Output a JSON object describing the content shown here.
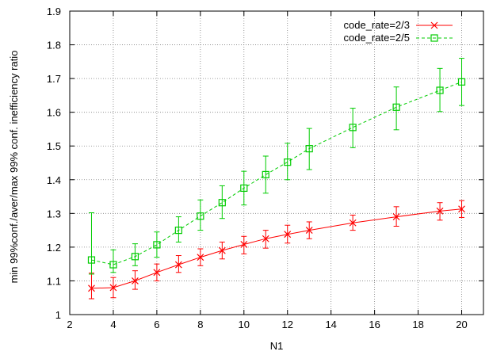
{
  "chart_data": {
    "type": "line",
    "xlabel": "N1",
    "ylabel": "min 99%conf./aver/max 99% conf. inefficiency ratio",
    "xlim": [
      2,
      21
    ],
    "ylim": [
      1,
      1.9
    ],
    "xticks": [
      2,
      4,
      6,
      8,
      10,
      12,
      14,
      16,
      18,
      20
    ],
    "yticks": [
      1,
      1.1,
      1.2,
      1.3,
      1.4,
      1.5,
      1.6,
      1.7,
      1.8,
      1.9
    ],
    "grid": true,
    "legend": "top-right",
    "series": [
      {
        "name": "code_rate=2/3",
        "color": "#ff0000",
        "marker": "x-icon",
        "line": "solid",
        "x": [
          3,
          4,
          5,
          6,
          7,
          8,
          9,
          10,
          11,
          12,
          13,
          15,
          17,
          19,
          20
        ],
        "y": [
          1.078,
          1.08,
          1.1,
          1.125,
          1.148,
          1.17,
          1.19,
          1.208,
          1.225,
          1.238,
          1.25,
          1.272,
          1.29,
          1.307,
          1.313
        ],
        "ymin": [
          1.047,
          1.05,
          1.075,
          1.1,
          1.125,
          1.145,
          1.165,
          1.18,
          1.197,
          1.212,
          1.225,
          1.25,
          1.262,
          1.28,
          1.288
        ],
        "ymax": [
          1.123,
          1.11,
          1.13,
          1.15,
          1.175,
          1.195,
          1.215,
          1.232,
          1.25,
          1.265,
          1.275,
          1.295,
          1.32,
          1.332,
          1.338
        ]
      },
      {
        "name": "code_rate=2/5",
        "color": "#00cc00",
        "marker": "square-icon",
        "line": "dashed",
        "x": [
          3,
          4,
          5,
          6,
          7,
          8,
          9,
          10,
          11,
          12,
          13,
          15,
          17,
          19,
          20
        ],
        "y": [
          1.162,
          1.148,
          1.172,
          1.207,
          1.25,
          1.292,
          1.332,
          1.375,
          1.415,
          1.452,
          1.492,
          1.555,
          1.615,
          1.665,
          1.69
        ],
        "ymin": [
          1.12,
          1.125,
          1.145,
          1.17,
          1.215,
          1.25,
          1.285,
          1.325,
          1.36,
          1.4,
          1.43,
          1.495,
          1.548,
          1.602,
          1.62
        ],
        "ymax": [
          1.302,
          1.192,
          1.21,
          1.245,
          1.29,
          1.34,
          1.382,
          1.425,
          1.47,
          1.508,
          1.552,
          1.612,
          1.675,
          1.73,
          1.76
        ]
      }
    ]
  }
}
